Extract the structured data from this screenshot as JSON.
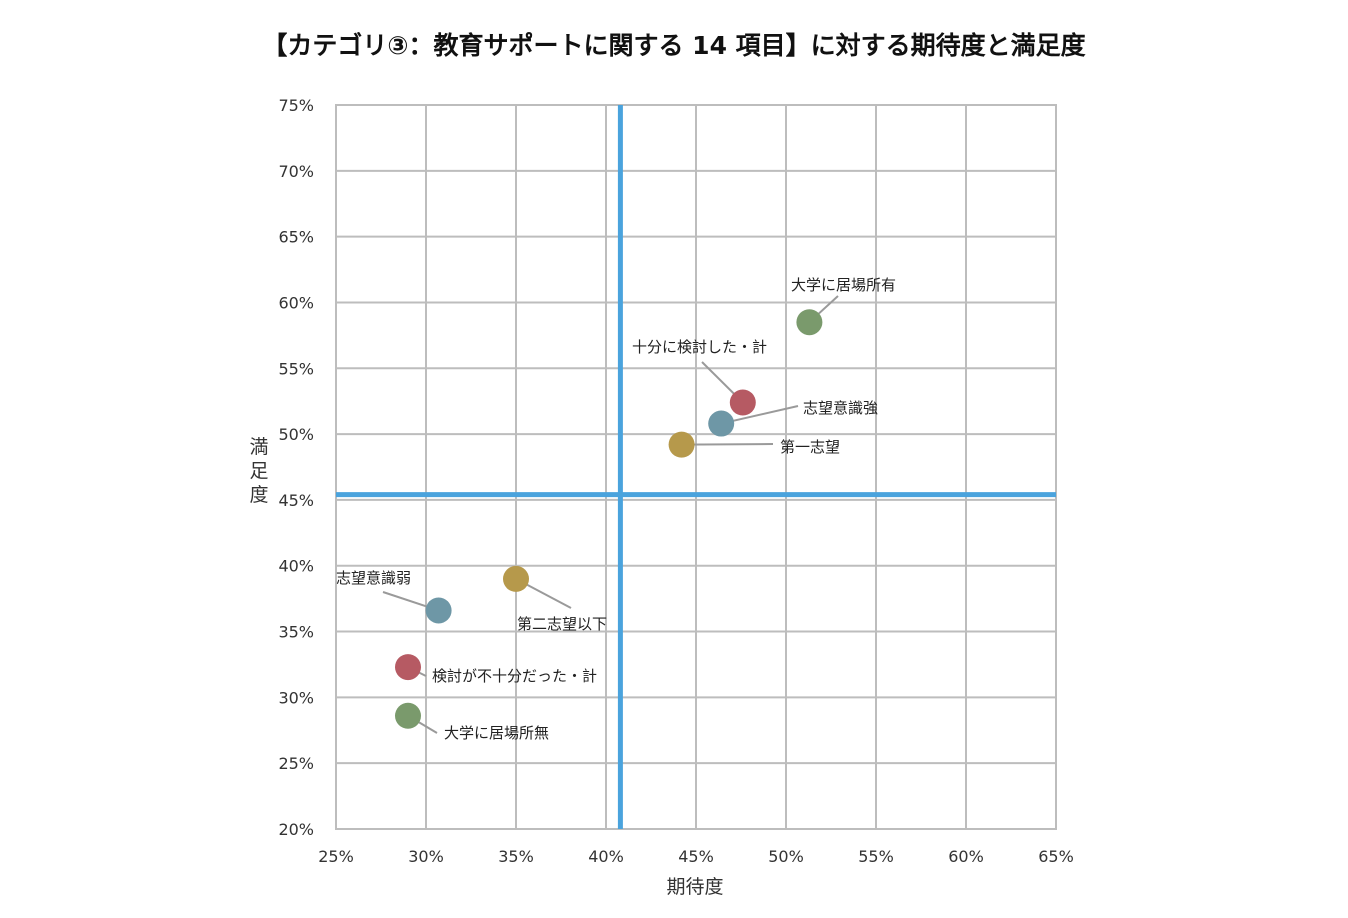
{
  "chart_data": {
    "type": "scatter",
    "title": "【カテゴリ③：教育サポートに関する 14 項目】に対する期待度と満足度",
    "xlabel": "期待度",
    "ylabel": "満足度",
    "xlim": [
      25,
      65
    ],
    "ylim": [
      20,
      75
    ],
    "xticks": [
      25,
      30,
      35,
      40,
      45,
      50,
      55,
      60,
      65
    ],
    "yticks": [
      20,
      25,
      30,
      35,
      40,
      45,
      50,
      55,
      60,
      65,
      70,
      75
    ],
    "tick_suffix": "%",
    "grid": true,
    "reference_lines": {
      "x": 40.8,
      "y": 45.4,
      "color": "#4aa3dd"
    },
    "points": [
      {
        "label": "大学に居場所有",
        "x": 51.3,
        "y": 58.5,
        "color": "#7a9a6c"
      },
      {
        "label": "十分に検討した・計",
        "x": 47.6,
        "y": 52.4,
        "color": "#b65a63"
      },
      {
        "label": "志望意識強",
        "x": 46.4,
        "y": 50.8,
        "color": "#6e97a6"
      },
      {
        "label": "第一志望",
        "x": 44.2,
        "y": 49.2,
        "color": "#b6994b"
      },
      {
        "label": "第二志望以下",
        "x": 35.0,
        "y": 39.0,
        "color": "#b6994b"
      },
      {
        "label": "志望意識弱",
        "x": 30.7,
        "y": 36.6,
        "color": "#6e97a6"
      },
      {
        "label": "検討が不十分だった・計",
        "x": 29.0,
        "y": 32.3,
        "color": "#b65a63"
      },
      {
        "label": "大学に居場所無",
        "x": 29.0,
        "y": 28.6,
        "color": "#7a9a6c"
      }
    ]
  }
}
